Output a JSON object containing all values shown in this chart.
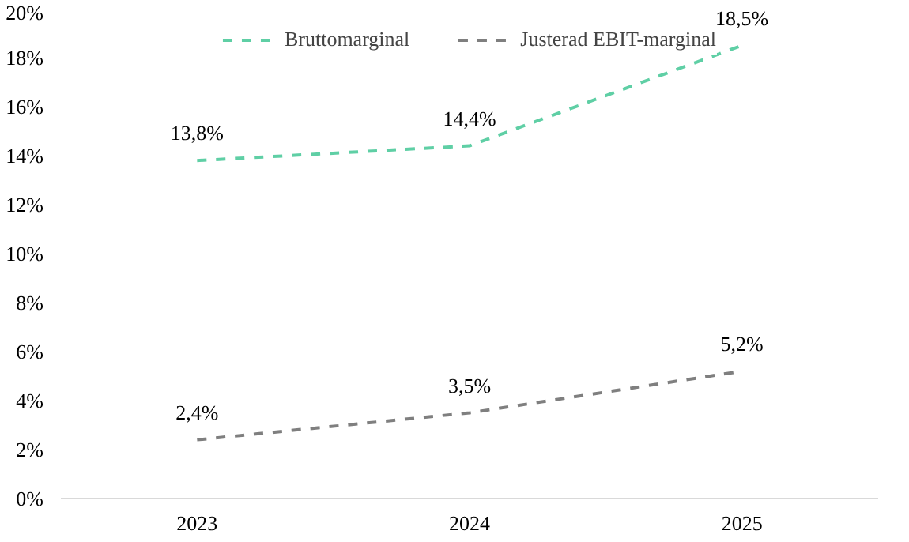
{
  "chart_data": {
    "type": "line",
    "categories": [
      "2023",
      "2024",
      "2025"
    ],
    "series": [
      {
        "name": "Bruttomarginal",
        "color": "#5fcfa5",
        "values": [
          13.8,
          14.4,
          18.5
        ],
        "value_labels": [
          "13,8%",
          "14,4%",
          "18,5%"
        ]
      },
      {
        "name": "Justerad EBIT-marginal",
        "color": "#7f7f7f",
        "values": [
          2.4,
          3.5,
          5.2
        ],
        "value_labels": [
          "2,4%",
          "3,5%",
          "5,2%"
        ]
      }
    ],
    "ylim": [
      0,
      20
    ],
    "yticks": [
      {
        "value": 0,
        "label": "0%"
      },
      {
        "value": 2,
        "label": "2%"
      },
      {
        "value": 4,
        "label": "4%"
      },
      {
        "value": 6,
        "label": "6%"
      },
      {
        "value": 8,
        "label": "8%"
      },
      {
        "value": 10,
        "label": "10%"
      },
      {
        "value": 12,
        "label": "12%"
      },
      {
        "value": 14,
        "label": "14%"
      },
      {
        "value": 16,
        "label": "16%"
      },
      {
        "value": 18,
        "label": "18%"
      },
      {
        "value": 20,
        "label": "20%"
      }
    ],
    "grid": false,
    "legend": "top",
    "line_style": "dashed",
    "marker": "none"
  }
}
